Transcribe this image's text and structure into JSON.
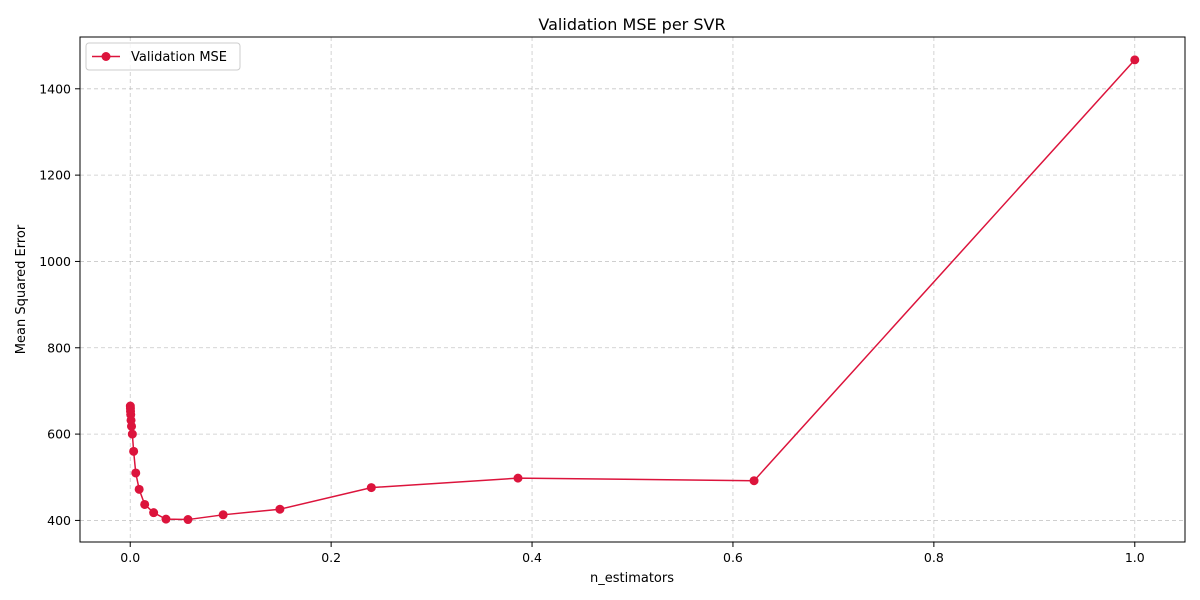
{
  "chart_data": {
    "type": "line",
    "title": "Validation MSE per SVR",
    "xlabel": "n_estimators",
    "ylabel": "Mean Squared Error",
    "xlim": [
      -0.05,
      1.05
    ],
    "ylim": [
      350,
      1520
    ],
    "xticks": [
      0.0,
      0.2,
      0.4,
      0.6,
      0.8,
      1.0
    ],
    "xtick_labels": [
      "0.0",
      "0.2",
      "0.4",
      "0.6",
      "0.8",
      "1.0"
    ],
    "yticks": [
      400,
      600,
      800,
      1000,
      1200,
      1400
    ],
    "ytick_labels": [
      "400",
      "600",
      "800",
      "1000",
      "1200",
      "1400"
    ],
    "grid": true,
    "legend_position": "top-left",
    "series": [
      {
        "name": "Validation MSE",
        "color": "#dc143c",
        "marker": "circle",
        "x": [
          0.0001,
          0.0002,
          0.0003,
          0.0005,
          0.0008,
          0.0013,
          0.0021,
          0.0034,
          0.0055,
          0.0089,
          0.0144,
          0.0233,
          0.0356,
          0.0575,
          0.0925,
          0.149,
          0.24,
          0.386,
          0.621,
          1.0
        ],
        "y": [
          665,
          660,
          653,
          645,
          632,
          618,
          600,
          560,
          510,
          472,
          437,
          418,
          403,
          402,
          413,
          426,
          476,
          498,
          492,
          1467
        ]
      }
    ]
  }
}
